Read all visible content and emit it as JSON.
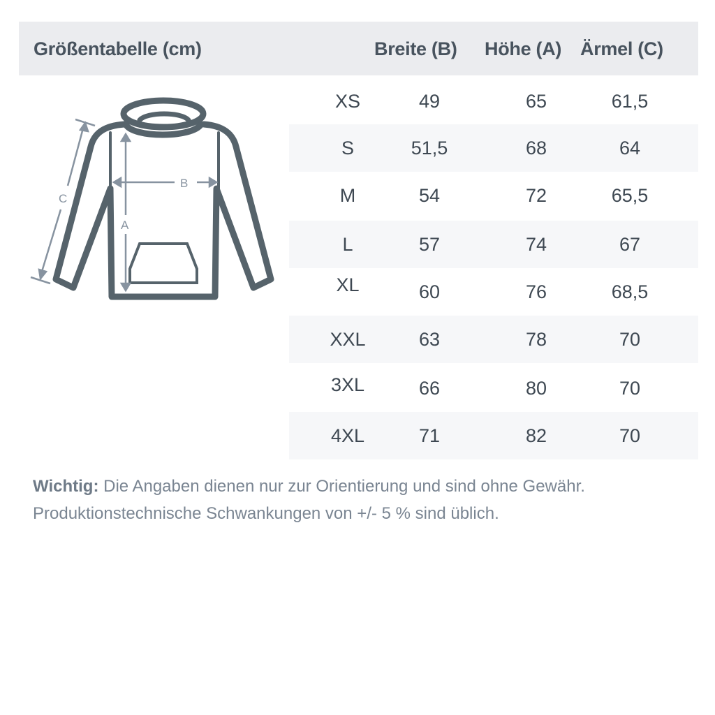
{
  "header": {
    "title": "Größentabelle (cm)",
    "columns": [
      "Breite (B)",
      "Höhe (A)",
      "Ärmel (C)"
    ]
  },
  "rows": [
    {
      "size": "XS",
      "b": "49",
      "a": "65",
      "c": "61,5"
    },
    {
      "size": "S",
      "b": "51,5",
      "a": "68",
      "c": "64"
    },
    {
      "size": "M",
      "b": "54",
      "a": "72",
      "c": "65,5"
    },
    {
      "size": "L",
      "b": "57",
      "a": "74",
      "c": "67"
    },
    {
      "size": "XL",
      "b": "60",
      "a": "76",
      "c": "68,5"
    },
    {
      "size": "XXL",
      "b": "63",
      "a": "78",
      "c": "70"
    },
    {
      "size": "3XL",
      "b": "66",
      "a": "80",
      "c": "70"
    },
    {
      "size": "4XL",
      "b": "71",
      "a": "82",
      "c": "70"
    }
  ],
  "diagram": {
    "label_a": "A",
    "label_b": "B",
    "label_c": "C"
  },
  "note": {
    "bold": "Wichtig:",
    "line1": " Die Angaben dienen nur zur Orientierung und sind ohne Gewähr.",
    "line2": "Produktionstechnische Schwankungen von +/- 5 % sind üblich."
  },
  "colors": {
    "header_bg": "#ebecef",
    "stripe": "#f6f7f9",
    "garment": "#56636b",
    "measure": "#8793a0"
  }
}
